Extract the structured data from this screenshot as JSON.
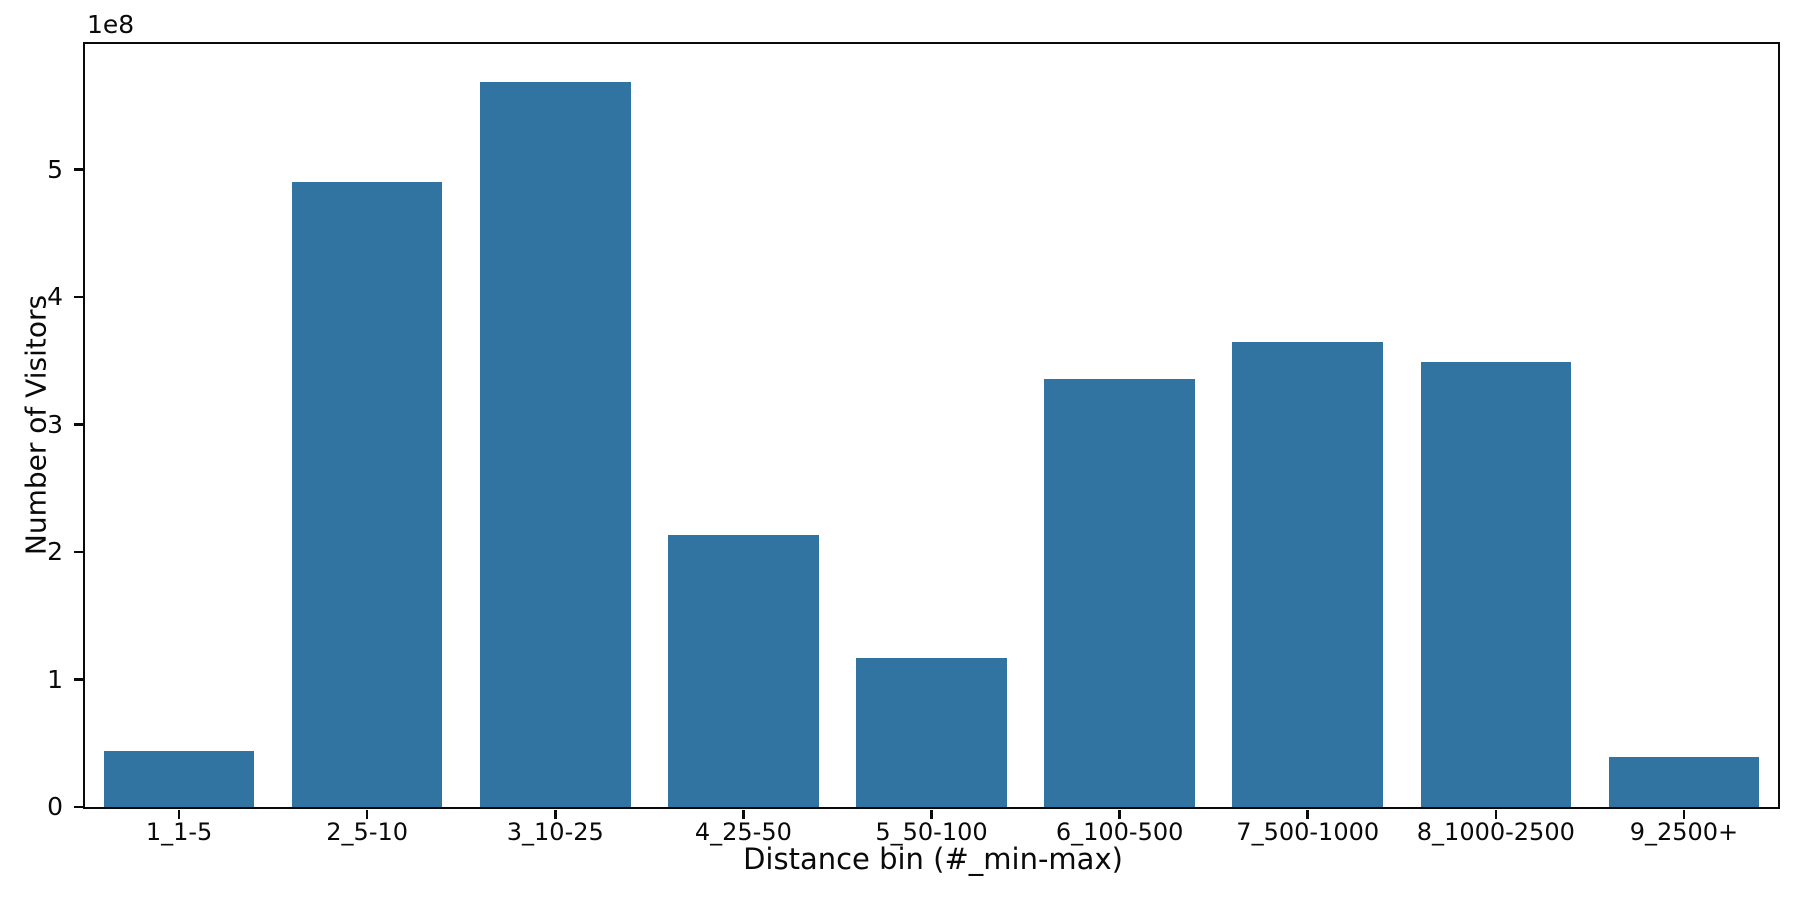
{
  "chart_data": {
    "type": "bar",
    "title": "",
    "xlabel": "Distance bin (#_min-max)",
    "ylabel": "Number of Visitors",
    "offset_text": "1e8",
    "categories": [
      "1_1-5",
      "2_5-10",
      "3_10-25",
      "4_25-50",
      "5_50-100",
      "6_100-500",
      "7_500-1000",
      "8_1000-2500",
      "9_2500+"
    ],
    "values": [
      44000000,
      490000000,
      569000000,
      213000000,
      117000000,
      336000000,
      365000000,
      349000000,
      39000000
    ],
    "bar_color": "#3274A1",
    "bar_width_fraction": 0.8,
    "ylim": [
      0,
      598500000
    ],
    "yticks": {
      "values": [
        0,
        100000000,
        200000000,
        300000000,
        400000000,
        500000000
      ],
      "labels": [
        "0",
        "1",
        "2",
        "3",
        "4",
        "5"
      ]
    },
    "grid": false,
    "legend": null,
    "layout": "single axes, full box spines, ticks outward"
  }
}
